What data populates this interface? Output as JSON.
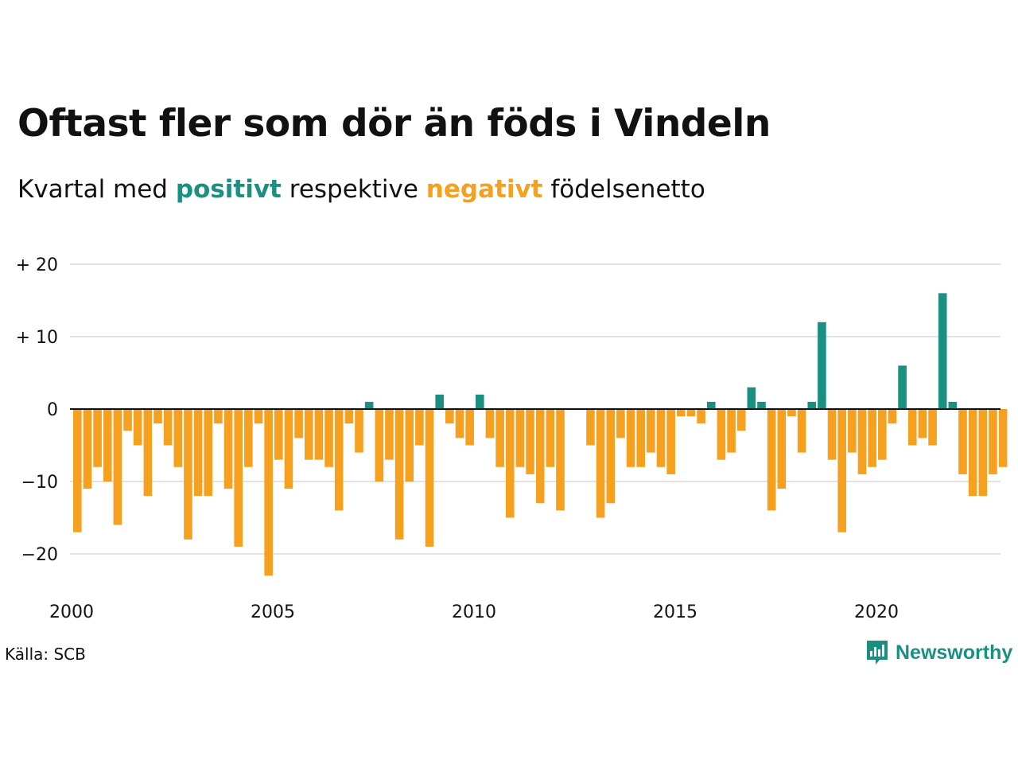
{
  "title": "Oftast fler som dör än föds i Vindeln",
  "subtitle": {
    "prefix": "Kvartal med",
    "positive_word": "positivt",
    "middle": "respektive",
    "negative_word": "negativt",
    "suffix": "födelsenetto"
  },
  "source": "Källa: SCB",
  "brand": {
    "name": "Newsworthy",
    "icon": "newsworthy-logo-icon"
  },
  "colors": {
    "positive": "#1a9080",
    "negative": "#f5a01e",
    "grid": "#e3e3e3",
    "text": "#111111"
  },
  "chart_data": {
    "type": "bar",
    "x_start": "2000 Q1",
    "x_end": "2022 Q4",
    "x_ticks": [
      "2000",
      "2005",
      "2010",
      "2015",
      "2020"
    ],
    "y_ticks": [
      20,
      10,
      0,
      -10,
      -20
    ],
    "y_tick_labels": [
      "+ 20",
      "+ 10",
      "0",
      "−10",
      "−20"
    ],
    "ylim": [
      -25,
      20
    ],
    "grid": true,
    "series": [
      {
        "values": [
          -17,
          -11,
          -8,
          -10,
          -16,
          -3,
          -5,
          -12,
          -2,
          -5,
          -8,
          -18,
          -12,
          -12,
          -2,
          -11,
          -19,
          -8,
          -2,
          -23,
          -7,
          -11,
          -4,
          -7,
          -7,
          -8,
          -14,
          -2,
          -6,
          1,
          -10,
          -7,
          -18,
          -10,
          -5,
          -19,
          2,
          -2,
          -4,
          -5,
          2,
          -4,
          -8,
          -15,
          -8,
          -9,
          -13,
          -8,
          -14,
          0,
          0,
          -5,
          -15,
          -13,
          -4,
          -8,
          -8,
          -6,
          -8,
          -9,
          -1,
          -1,
          -2,
          1,
          -7,
          -6,
          -3,
          3,
          1,
          -14,
          -11,
          -1,
          -6,
          1,
          12,
          -7,
          -17,
          -6,
          -9,
          -8,
          -7,
          -2,
          6,
          -5,
          -4,
          -5,
          16,
          1,
          -9,
          -12,
          -12,
          -9,
          -8
        ]
      }
    ]
  }
}
